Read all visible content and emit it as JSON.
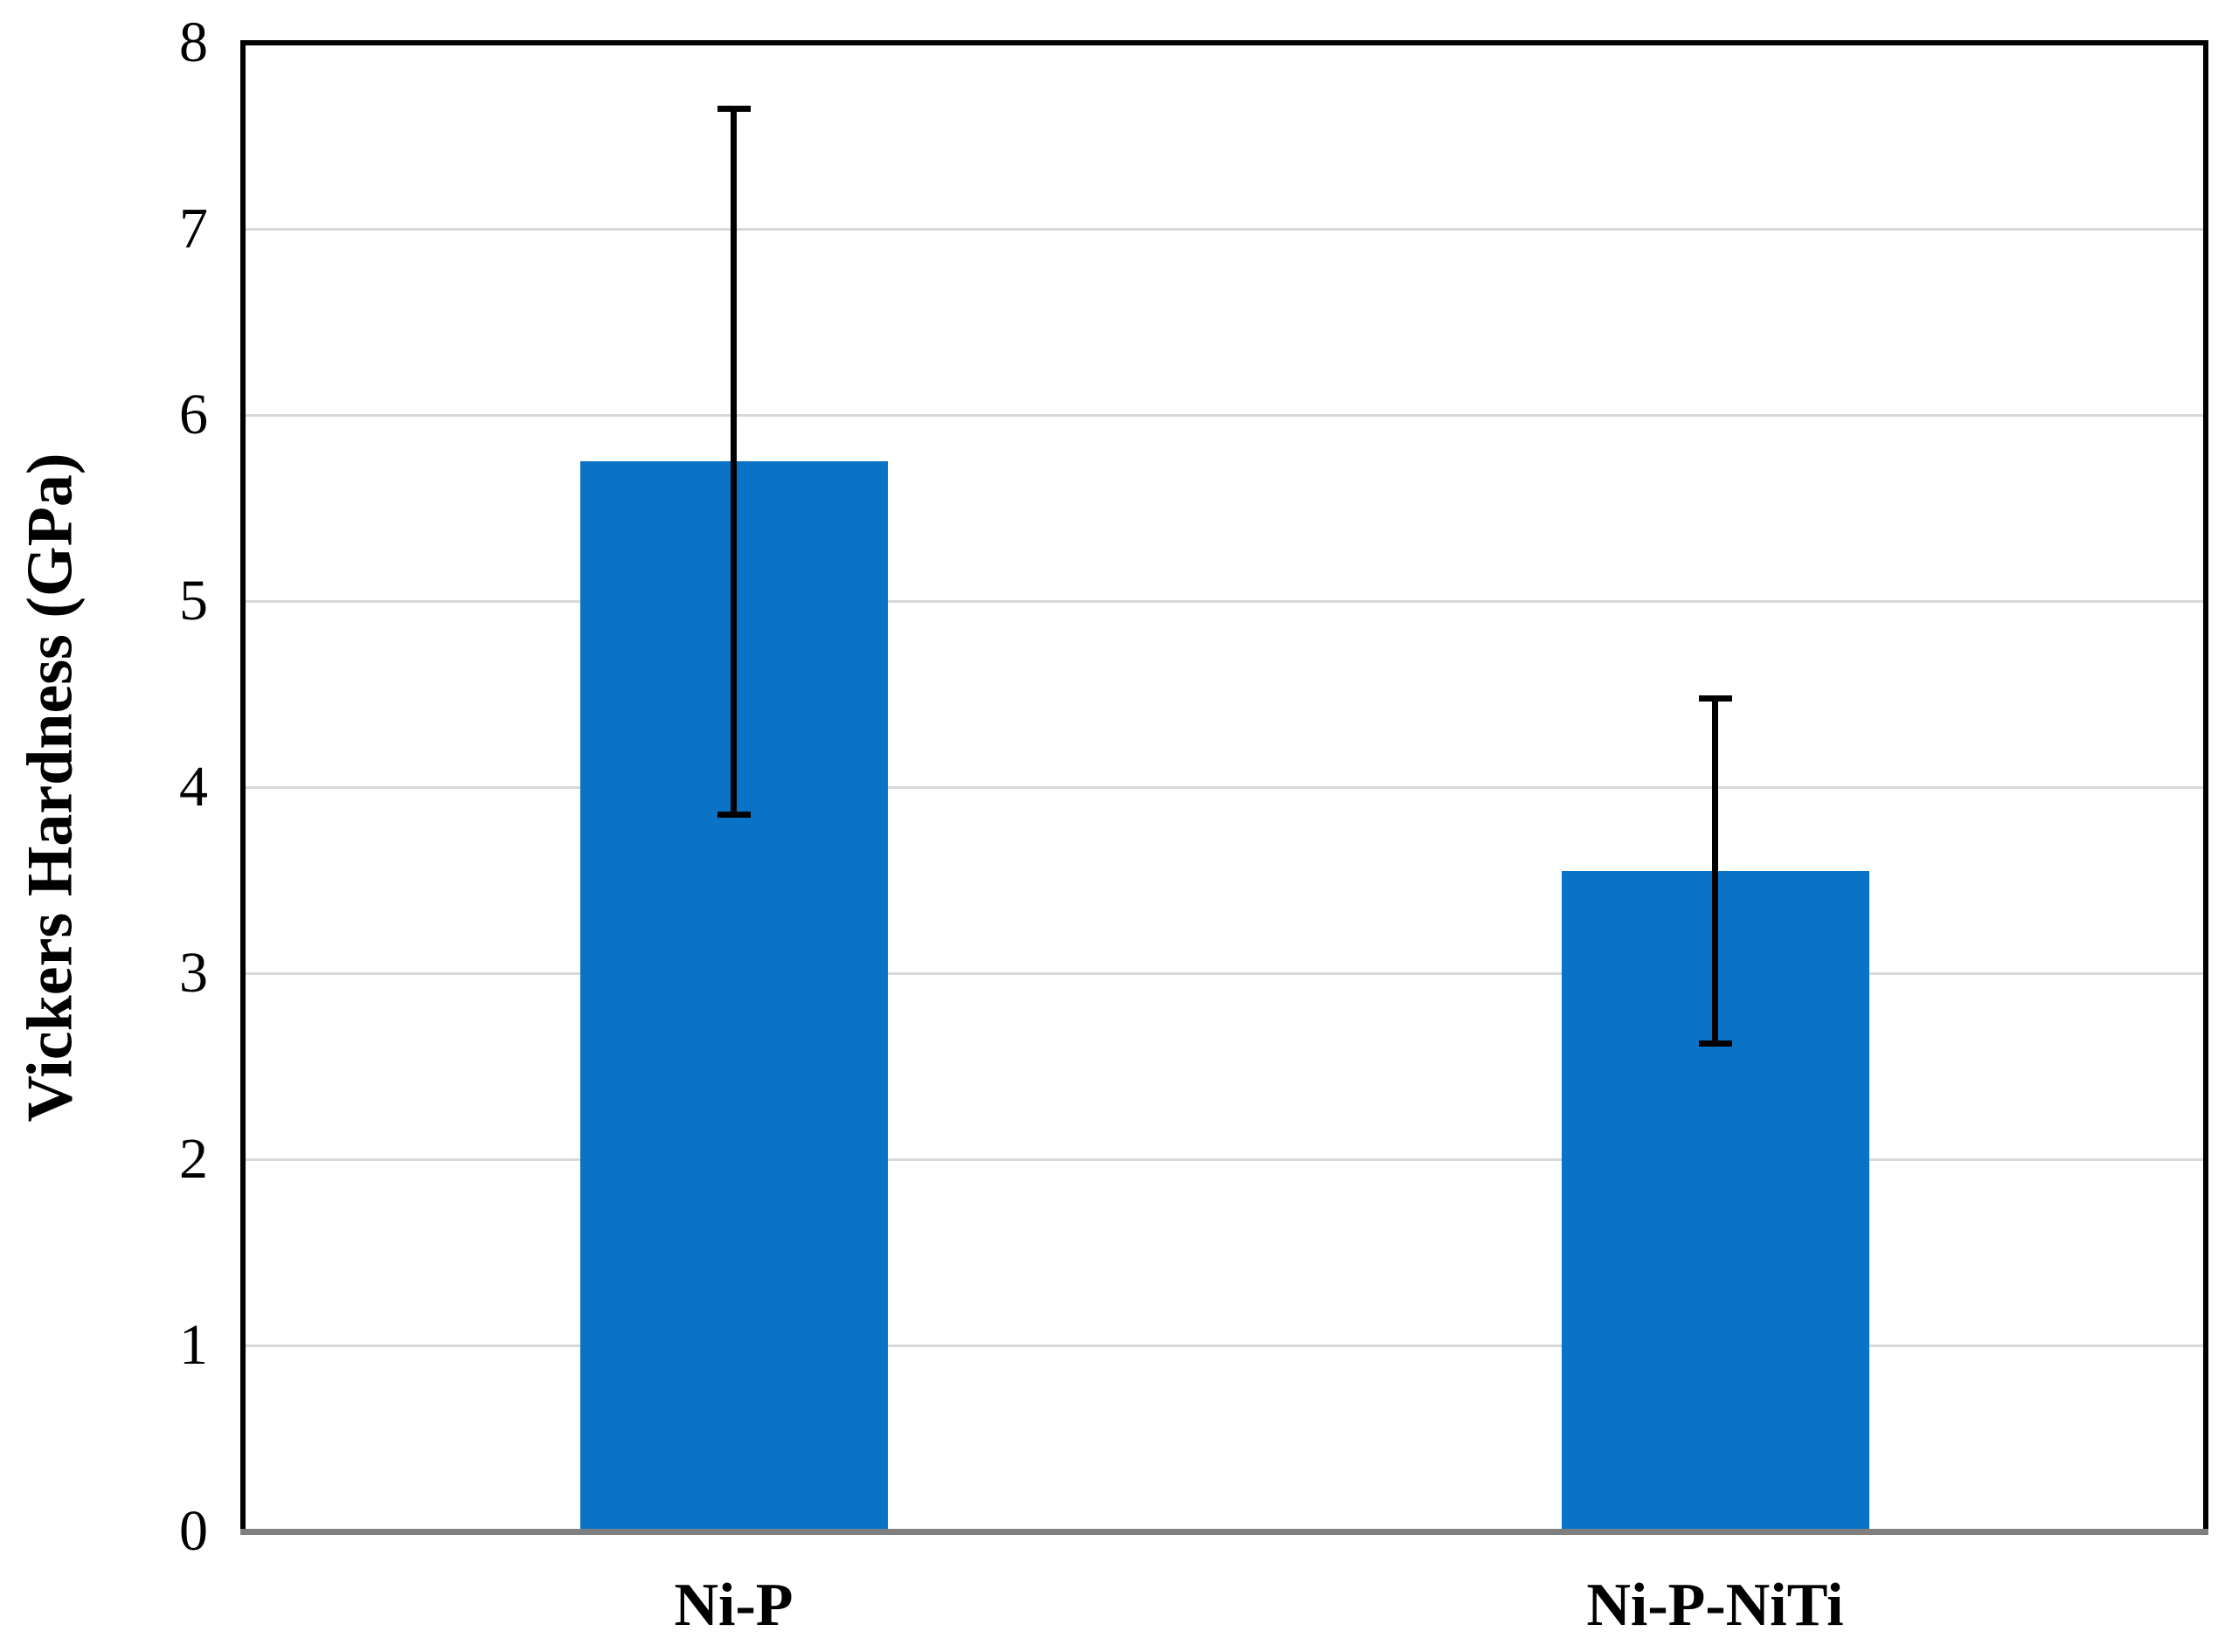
{
  "chart_data": {
    "type": "bar",
    "title": "",
    "xlabel": "",
    "ylabel": "Vickers Hardness (GPa)",
    "categories": [
      "Ni-P",
      "Ni-P-NiTi"
    ],
    "values": [
      5.75,
      3.55
    ],
    "error_bars": {
      "lower": [
        3.85,
        2.62
      ],
      "upper": [
        7.65,
        4.48
      ]
    },
    "ylim": [
      0,
      8
    ],
    "yticks": [
      0,
      1,
      2,
      3,
      4,
      5,
      6,
      7,
      8
    ],
    "grid": "horizontal",
    "legend": "none"
  },
  "style": {
    "background": "#ffffff",
    "bar_color": "#0a73c6",
    "gridline_color": "#d9d9d9",
    "plot_border_color": "#000000",
    "baseline_color": "#7f7f7f",
    "error_bar_color": "#000000",
    "text_color": "#000000"
  }
}
